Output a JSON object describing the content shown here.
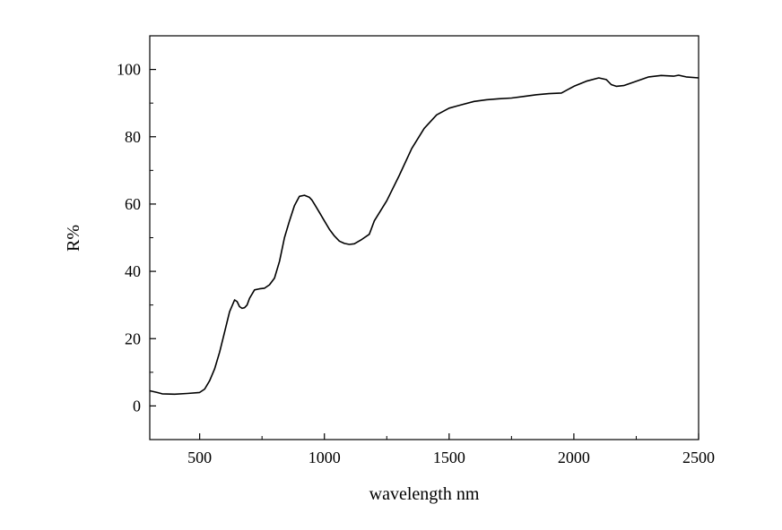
{
  "chart_data": {
    "type": "line",
    "xlabel": "wavelength nm",
    "ylabel": "R%",
    "xlim": [
      300,
      2500
    ],
    "ylim": [
      -10,
      110
    ],
    "x_ticks": [
      500,
      1000,
      1500,
      2000,
      2500
    ],
    "x_tick_labels": [
      "500",
      "1000",
      "1500",
      "2000",
      "2500"
    ],
    "y_ticks": [
      0,
      20,
      40,
      60,
      80,
      100
    ],
    "y_tick_labels": [
      "0",
      "20",
      "40",
      "60",
      "80",
      "100"
    ],
    "grid": false,
    "series": [
      {
        "color": "#000000",
        "x": [
          300,
          330,
          350,
          400,
          450,
          500,
          520,
          540,
          560,
          580,
          600,
          620,
          640,
          650,
          660,
          670,
          680,
          690,
          700,
          720,
          740,
          760,
          780,
          800,
          820,
          840,
          860,
          880,
          900,
          920,
          940,
          950,
          960,
          980,
          1000,
          1020,
          1040,
          1060,
          1080,
          1100,
          1120,
          1150,
          1180,
          1200,
          1250,
          1300,
          1350,
          1400,
          1450,
          1500,
          1550,
          1600,
          1650,
          1700,
          1750,
          1800,
          1850,
          1900,
          1950,
          2000,
          2050,
          2100,
          2130,
          2150,
          2170,
          2200,
          2250,
          2300,
          2350,
          2400,
          2420,
          2450,
          2500
        ],
        "y": [
          4.5,
          4.0,
          3.6,
          3.5,
          3.7,
          4.0,
          5.0,
          7.5,
          11.0,
          16.0,
          22.0,
          28.0,
          31.5,
          31.0,
          29.5,
          29.0,
          29.2,
          30.0,
          32.0,
          34.5,
          34.8,
          35.0,
          36.0,
          38.0,
          43.0,
          50.0,
          55.0,
          59.5,
          62.3,
          62.6,
          62.0,
          61.2,
          60.0,
          57.5,
          55.0,
          52.5,
          50.5,
          49.0,
          48.3,
          48.0,
          48.2,
          49.5,
          51.0,
          55.0,
          61.0,
          68.5,
          76.5,
          82.5,
          86.5,
          88.5,
          89.5,
          90.5,
          91.0,
          91.3,
          91.5,
          92.0,
          92.5,
          92.8,
          93.0,
          95.0,
          96.5,
          97.5,
          97.0,
          95.5,
          95.0,
          95.2,
          96.5,
          97.8,
          98.2,
          98.0,
          98.3,
          97.8,
          97.5
        ]
      }
    ]
  }
}
